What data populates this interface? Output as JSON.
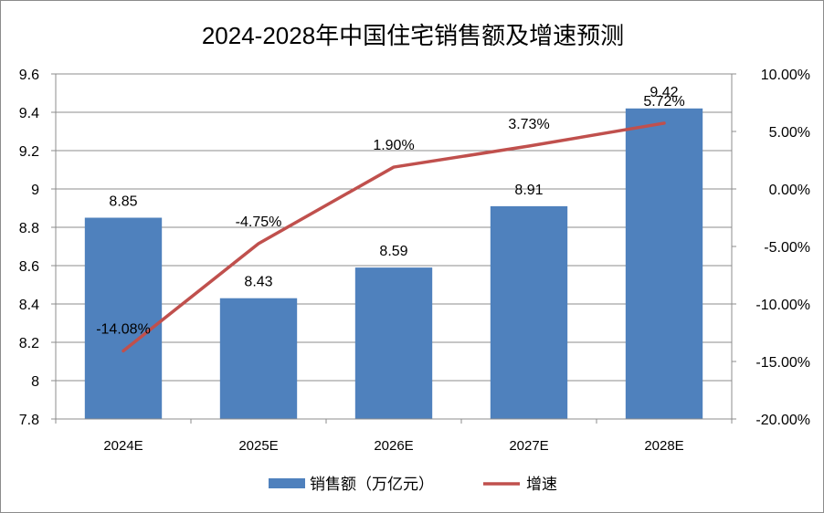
{
  "chart_data": {
    "type": "bar+line",
    "title": "2024-2028年中国住宅销售额及增速预测",
    "categories": [
      "2024E",
      "2025E",
      "2026E",
      "2027E",
      "2028E"
    ],
    "series": [
      {
        "name": "销售额（万亿元）",
        "type": "bar",
        "axis": "left",
        "color": "#4f81bd",
        "values": [
          8.85,
          8.43,
          8.59,
          8.91,
          9.42
        ],
        "labels": [
          "8.85",
          "8.43",
          "8.59",
          "8.91",
          "9.42"
        ]
      },
      {
        "name": "增速",
        "type": "line",
        "axis": "right",
        "color": "#c0504d",
        "values": [
          -14.08,
          -4.75,
          1.9,
          3.73,
          5.72
        ],
        "labels": [
          "-14.08%",
          "-4.75%",
          "1.90%",
          "3.73%",
          "5.72%"
        ]
      }
    ],
    "y_left": {
      "min": 7.8,
      "max": 9.6,
      "step": 0.2,
      "tick_labels": [
        "7.8",
        "8",
        "8.2",
        "8.4",
        "8.6",
        "8.8",
        "9",
        "9.2",
        "9.4",
        "9.6"
      ]
    },
    "y_right": {
      "min": -20,
      "max": 10,
      "step": 5,
      "tick_labels": [
        "-20.00%",
        "-15.00%",
        "-10.00%",
        "-5.00%",
        "0.00%",
        "5.00%",
        "10.00%"
      ]
    },
    "grid": true,
    "legend_position": "bottom"
  }
}
